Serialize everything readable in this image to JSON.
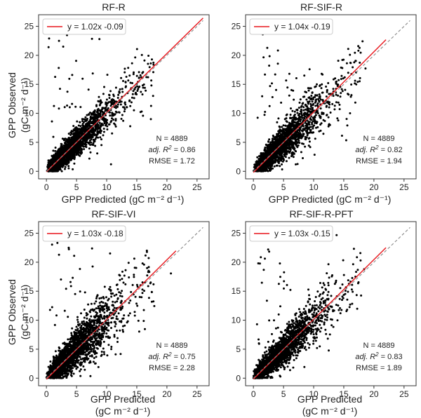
{
  "chart_data": [
    {
      "type": "scatter",
      "title": "RF-R",
      "xlabel": "GPP Predicted (gC m⁻² d⁻¹)",
      "ylabel": "GPP Observed (gC m⁻² d⁻¹)",
      "xlim": [
        -1.3,
        27
      ],
      "ylim": [
        -1.3,
        27
      ],
      "ticks": [
        0,
        5,
        10,
        15,
        20,
        25
      ],
      "series": [
        {
          "name": "y = 1.02x -0.09",
          "type": "line",
          "slope": 1.02,
          "intercept": -0.09,
          "x_range": [
            0,
            26
          ],
          "color": "#e8151b"
        },
        {
          "type": "line",
          "slope": 1,
          "intercept": 0,
          "x_range": [
            0,
            26
          ],
          "color": "#888888",
          "dashed": true
        },
        {
          "type": "scatter",
          "n": 4889,
          "color": "#000000"
        }
      ],
      "legend_position": "top-left",
      "stats": {
        "n": "N = 4889",
        "r2_label": "adj. R",
        "r2_value": " = 0.86",
        "rmse": "RMSE = 1.72"
      }
    },
    {
      "type": "scatter",
      "title": "RF-SIF-R",
      "xlabel": "GPP Predicted (gC m⁻² d⁻¹)",
      "ylabel": "",
      "xlim": [
        -1.3,
        27
      ],
      "ylim": [
        -1.3,
        27
      ],
      "ticks": [
        0,
        5,
        10,
        15,
        20,
        25
      ],
      "series": [
        {
          "name": "y = 1.04x -0.19",
          "type": "line",
          "slope": 1.04,
          "intercept": -0.19,
          "x_range": [
            0,
            22
          ],
          "color": "#e8151b"
        },
        {
          "type": "line",
          "slope": 1,
          "intercept": 0,
          "x_range": [
            0,
            26
          ],
          "color": "#888888",
          "dashed": true
        },
        {
          "type": "scatter",
          "n": 4889,
          "color": "#000000"
        }
      ],
      "legend_position": "top-left",
      "stats": {
        "n": "N = 4889",
        "r2_label": "adj. R",
        "r2_value": " = 0.82",
        "rmse": "RMSE = 1.94"
      }
    },
    {
      "type": "scatter",
      "title": "RF-SIF-VI",
      "xlabel": "GPP Predicted (gC m⁻² d⁻¹)",
      "ylabel": "GPP Observed (gC m⁻² d⁻¹)",
      "xlim": [
        -1.3,
        27
      ],
      "ylim": [
        -1.3,
        27
      ],
      "ticks": [
        0,
        5,
        10,
        15,
        20,
        25
      ],
      "series": [
        {
          "name": "y = 1.03x -0.18",
          "type": "line",
          "slope": 1.03,
          "intercept": -0.18,
          "x_range": [
            0,
            21.5
          ],
          "color": "#e8151b"
        },
        {
          "type": "line",
          "slope": 1,
          "intercept": 0,
          "x_range": [
            0,
            26
          ],
          "color": "#888888",
          "dashed": true
        },
        {
          "type": "scatter",
          "n": 4889,
          "color": "#000000"
        }
      ],
      "legend_position": "top-left",
      "stats": {
        "n": "N = 4889",
        "r2_label": "adj. R",
        "r2_value": " = 0.75",
        "rmse": "RMSE = 2.28"
      }
    },
    {
      "type": "scatter",
      "title": "RF-SIF-R-PFT",
      "xlabel": "GPP Predicted (gC m⁻² d⁻¹)",
      "ylabel": "",
      "xlim": [
        -1.3,
        27
      ],
      "ylim": [
        -1.3,
        27
      ],
      "ticks": [
        0,
        5,
        10,
        15,
        20,
        25
      ],
      "series": [
        {
          "name": "y = 1.03x -0.15",
          "type": "line",
          "slope": 1.03,
          "intercept": -0.15,
          "x_range": [
            0,
            22
          ],
          "color": "#e8151b"
        },
        {
          "type": "line",
          "slope": 1,
          "intercept": 0,
          "x_range": [
            0,
            26
          ],
          "color": "#888888",
          "dashed": true
        },
        {
          "type": "scatter",
          "n": 4889,
          "color": "#000000"
        }
      ],
      "legend_position": "top-left",
      "stats": {
        "n": "N = 4889",
        "r2_label": "adj. R",
        "r2_value": " = 0.83",
        "rmse": "RMSE = 1.89"
      }
    }
  ],
  "labels": {
    "gpp_observed": "GPP Observed",
    "gpp_predicted": "GPP Predicted",
    "units": "(gC m⁻² d⁻¹)"
  }
}
